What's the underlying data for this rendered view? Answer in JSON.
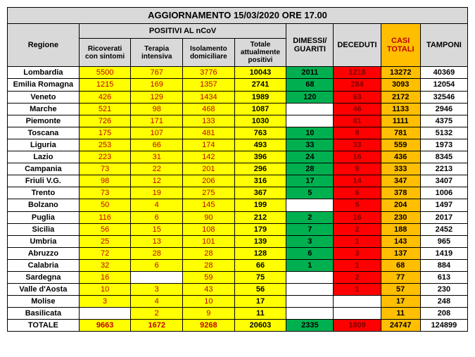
{
  "title": "AGGIORNAMENTO 15/03/2020 ORE 17.00",
  "headers": {
    "regione": "Regione",
    "positivi_group": "POSITIVI AL nCoV",
    "dimessi": "DIMESSI/ GUARITI",
    "deceduti": "DECEDUTI",
    "casi": "CASI TOTALI",
    "tamponi": "TAMPONI",
    "sub": {
      "ricoverati": "Ricoverati con sintomi",
      "terapia": "Terapia intensiva",
      "isolamento": "Isolamento domiciliare",
      "totale_pos": "Totale attualmente positivi"
    }
  },
  "rows": [
    {
      "region": "Lombardia",
      "ric": "5500",
      "ter": "767",
      "iso": "3776",
      "tot": "10043",
      "dim": "2011",
      "dec": "1218",
      "casi": "13272",
      "tam": "40369"
    },
    {
      "region": "Emilia Romagna",
      "ric": "1215",
      "ter": "169",
      "iso": "1357",
      "tot": "2741",
      "dim": "68",
      "dec": "284",
      "casi": "3093",
      "tam": "12054"
    },
    {
      "region": "Veneto",
      "ric": "426",
      "ter": "129",
      "iso": "1434",
      "tot": "1989",
      "dim": "120",
      "dec": "63",
      "casi": "2172",
      "tam": "32546"
    },
    {
      "region": "Marche",
      "ric": "521",
      "ter": "98",
      "iso": "468",
      "tot": "1087",
      "dim": "",
      "dec": "46",
      "casi": "1133",
      "tam": "2946"
    },
    {
      "region": "Piemonte",
      "ric": "726",
      "ter": "171",
      "iso": "133",
      "tot": "1030",
      "dim": "",
      "dec": "81",
      "casi": "1111",
      "tam": "4375"
    },
    {
      "region": "Toscana",
      "ric": "175",
      "ter": "107",
      "iso": "481",
      "tot": "763",
      "dim": "10",
      "dec": "8",
      "casi": "781",
      "tam": "5132"
    },
    {
      "region": "Liguria",
      "ric": "253",
      "ter": "66",
      "iso": "174",
      "tot": "493",
      "dim": "33",
      "dec": "33",
      "casi": "559",
      "tam": "1973"
    },
    {
      "region": "Lazio",
      "ric": "223",
      "ter": "31",
      "iso": "142",
      "tot": "396",
      "dim": "24",
      "dec": "16",
      "casi": "436",
      "tam": "8345"
    },
    {
      "region": "Campania",
      "ric": "73",
      "ter": "22",
      "iso": "201",
      "tot": "296",
      "dim": "28",
      "dec": "9",
      "casi": "333",
      "tam": "2213"
    },
    {
      "region": "Friuli V.G.",
      "ric": "98",
      "ter": "12",
      "iso": "206",
      "tot": "316",
      "dim": "17",
      "dec": "14",
      "casi": "347",
      "tam": "3407"
    },
    {
      "region": "Trento",
      "ric": "73",
      "ter": "19",
      "iso": "275",
      "tot": "367",
      "dim": "5",
      "dec": "6",
      "casi": "378",
      "tam": "1006"
    },
    {
      "region": "Bolzano",
      "ric": "50",
      "ter": "4",
      "iso": "145",
      "tot": "199",
      "dim": "",
      "dec": "5",
      "casi": "204",
      "tam": "1497"
    },
    {
      "region": "Puglia",
      "ric": "116",
      "ter": "6",
      "iso": "90",
      "tot": "212",
      "dim": "2",
      "dec": "16",
      "casi": "230",
      "tam": "2017"
    },
    {
      "region": "Sicilia",
      "ric": "56",
      "ter": "15",
      "iso": "108",
      "tot": "179",
      "dim": "7",
      "dec": "2",
      "casi": "188",
      "tam": "2452"
    },
    {
      "region": "Umbria",
      "ric": "25",
      "ter": "13",
      "iso": "101",
      "tot": "139",
      "dim": "3",
      "dec": "1",
      "casi": "143",
      "tam": "965"
    },
    {
      "region": "Abruzzo",
      "ric": "72",
      "ter": "28",
      "iso": "28",
      "tot": "128",
      "dim": "6",
      "dec": "3",
      "casi": "137",
      "tam": "1419"
    },
    {
      "region": "Calabria",
      "ric": "32",
      "ter": "6",
      "iso": "28",
      "tot": "66",
      "dim": "1",
      "dec": "1",
      "casi": "68",
      "tam": "884"
    },
    {
      "region": "Sardegna",
      "ric": "16",
      "ter": "",
      "iso": "59",
      "tot": "75",
      "dim": "",
      "dec": "2",
      "casi": "77",
      "tam": "613"
    },
    {
      "region": "Valle d'Aosta",
      "ric": "10",
      "ter": "3",
      "iso": "43",
      "tot": "56",
      "dim": "",
      "dec": "1",
      "casi": "57",
      "tam": "230"
    },
    {
      "region": "Molise",
      "ric": "3",
      "ter": "4",
      "iso": "10",
      "tot": "17",
      "dim": "",
      "dec": "",
      "casi": "17",
      "tam": "248"
    },
    {
      "region": "Basilicata",
      "ric": "",
      "ter": "2",
      "iso": "9",
      "tot": "11",
      "dim": "",
      "dec": "",
      "casi": "11",
      "tam": "208"
    }
  ],
  "total": {
    "region": "TOTALE",
    "ric": "9663",
    "ter": "1672",
    "iso": "9268",
    "tot": "20603",
    "dim": "2335",
    "dec": "1809",
    "casi": "24747",
    "tam": "124899"
  },
  "colors": {
    "yellow": "#ffff00",
    "green": "#00b050",
    "red": "#ff0000",
    "orange": "#ffbf00",
    "grey": "#d9d9d9",
    "darkred": "#c00000"
  }
}
